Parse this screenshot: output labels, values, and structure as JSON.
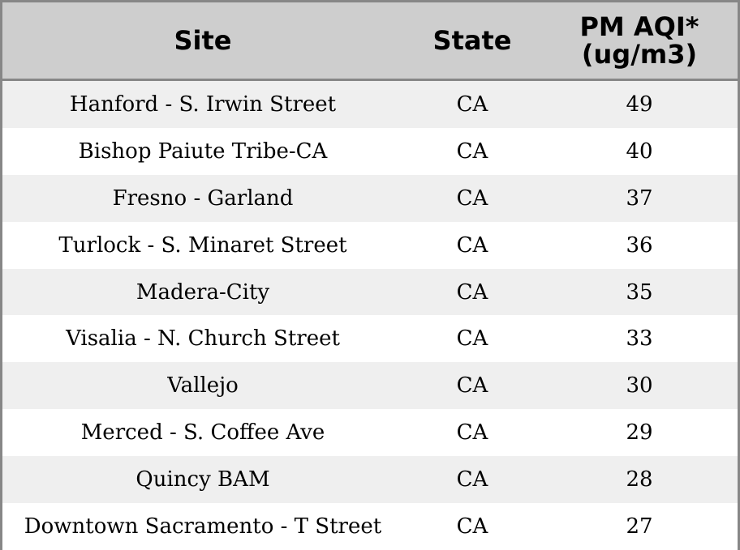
{
  "chart_data": {
    "type": "table",
    "columns": [
      "Site",
      "State",
      "PM AQI*\n(ug/m3)"
    ],
    "rows": [
      {
        "site": "Hanford - S. Irwin Street",
        "state": "CA",
        "aqi": 49
      },
      {
        "site": "Bishop Paiute Tribe-CA",
        "state": "CA",
        "aqi": 40
      },
      {
        "site": "Fresno - Garland",
        "state": "CA",
        "aqi": 37
      },
      {
        "site": "Turlock - S. Minaret Street",
        "state": "CA",
        "aqi": 36
      },
      {
        "site": "Madera-City",
        "state": "CA",
        "aqi": 35
      },
      {
        "site": "Visalia - N. Church Street",
        "state": "CA",
        "aqi": 33
      },
      {
        "site": "Vallejo",
        "state": "CA",
        "aqi": 30
      },
      {
        "site": "Merced - S. Coffee Ave",
        "state": "CA",
        "aqi": 29
      },
      {
        "site": "Quincy BAM",
        "state": "CA",
        "aqi": 28
      },
      {
        "site": "Downtown Sacramento - T Street",
        "state": "CA",
        "aqi": 27
      }
    ]
  },
  "colors": {
    "header_bg": "#cecece",
    "border": "#878787",
    "row_alt": "#efefef",
    "row_plain": "#ffffff"
  }
}
